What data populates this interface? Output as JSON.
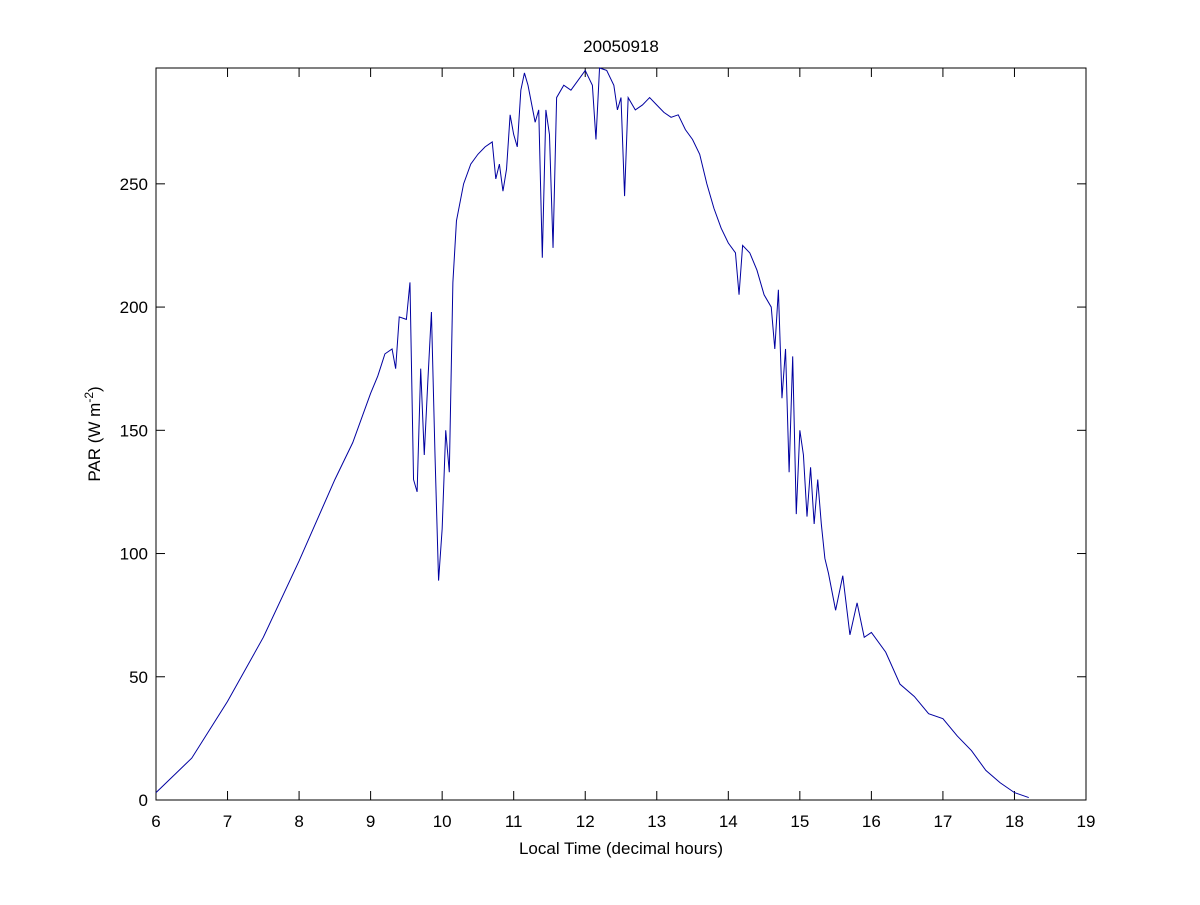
{
  "chart_data": {
    "type": "line",
    "title": "20050918",
    "xlabel": "Local Time (decimal hours)",
    "ylabel_parts": [
      "PAR (W m",
      "-2",
      ")"
    ],
    "x": [
      6.0,
      6.5,
      7.0,
      7.5,
      8.0,
      8.5,
      8.75,
      9.0,
      9.1,
      9.2,
      9.3,
      9.35,
      9.4,
      9.5,
      9.55,
      9.6,
      9.65,
      9.7,
      9.75,
      9.8,
      9.85,
      9.9,
      9.95,
      10.0,
      10.05,
      10.1,
      10.15,
      10.2,
      10.3,
      10.4,
      10.5,
      10.6,
      10.7,
      10.75,
      10.8,
      10.85,
      10.9,
      10.95,
      11.0,
      11.05,
      11.1,
      11.15,
      11.2,
      11.3,
      11.35,
      11.4,
      11.45,
      11.5,
      11.55,
      11.6,
      11.7,
      11.8,
      11.9,
      12.0,
      12.1,
      12.15,
      12.2,
      12.3,
      12.4,
      12.45,
      12.5,
      12.55,
      12.6,
      12.7,
      12.8,
      12.9,
      13.0,
      13.1,
      13.2,
      13.3,
      13.4,
      13.5,
      13.6,
      13.7,
      13.8,
      13.9,
      14.0,
      14.1,
      14.15,
      14.2,
      14.3,
      14.4,
      14.5,
      14.6,
      14.65,
      14.7,
      14.75,
      14.8,
      14.85,
      14.9,
      14.95,
      15.0,
      15.05,
      15.1,
      15.15,
      15.2,
      15.25,
      15.3,
      15.35,
      15.4,
      15.5,
      15.6,
      15.7,
      15.8,
      15.9,
      16.0,
      16.2,
      16.4,
      16.6,
      16.8,
      17.0,
      17.2,
      17.4,
      17.6,
      17.8,
      18.0,
      18.2
    ],
    "series": [
      {
        "name": "PAR",
        "color": "#0000a0",
        "values": [
          3,
          17,
          40,
          66,
          97,
          130,
          145,
          165,
          172,
          181,
          183,
          175,
          196,
          195,
          210,
          130,
          125,
          175,
          140,
          170,
          198,
          140,
          89,
          110,
          150,
          133,
          210,
          235,
          250,
          258,
          262,
          265,
          267,
          252,
          258,
          247,
          256,
          278,
          270,
          265,
          288,
          295,
          290,
          275,
          280,
          220,
          280,
          270,
          224,
          285,
          290,
          288,
          292,
          296,
          290,
          268,
          297,
          296,
          290,
          280,
          285,
          245,
          285,
          280,
          282,
          285,
          282,
          279,
          277,
          278,
          272,
          268,
          262,
          250,
          240,
          232,
          226,
          222,
          205,
          225,
          222,
          215,
          205,
          200,
          183,
          207,
          163,
          183,
          133,
          180,
          116,
          150,
          140,
          115,
          135,
          112,
          130,
          112,
          98,
          92,
          77,
          91,
          67,
          80,
          66,
          68,
          60,
          47,
          42,
          35,
          33,
          26,
          20,
          12,
          7,
          3,
          1
        ]
      }
    ],
    "xlim": [
      6,
      19
    ],
    "xticks": [
      6,
      7,
      8,
      9,
      10,
      11,
      12,
      13,
      14,
      15,
      16,
      17,
      18,
      19
    ],
    "ylim": [
      0,
      297
    ],
    "yticks": [
      0,
      50,
      100,
      150,
      200,
      250
    ]
  }
}
